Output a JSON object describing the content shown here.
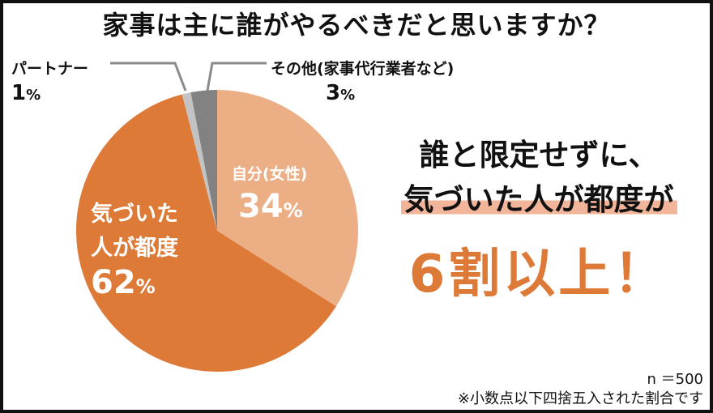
{
  "title": "家事は主に誰がやるべきだと思いますか？",
  "chart_data": {
    "type": "pie",
    "slices": [
      {
        "label": "自分(女性)",
        "value": 34,
        "color": "#ebae85"
      },
      {
        "label": "気づいた人が都度",
        "value": 62,
        "color": "#dd7a38"
      },
      {
        "label": "パートナー",
        "value": 1,
        "color": "#c3c3c3"
      },
      {
        "label": "その他(家事代行業者など)",
        "value": 3,
        "color": "#828282"
      }
    ],
    "labels": {
      "self_line1": "自分(女性)",
      "self_pct": "34",
      "aware_line1": "気づいた",
      "aware_line2": "人が都度",
      "aware_pct": "62",
      "partner_label": "パートナー",
      "partner_pct": "1",
      "other_label": "その他(家事代行業者など)",
      "other_pct": "3",
      "percent_sign": "%"
    }
  },
  "headline": {
    "line1": "誰と限定せずに、",
    "line2": "気づいた人が都度が",
    "line3": "6割以上！"
  },
  "footnote": {
    "n": "n ＝500",
    "note": "※小数点以下四捨五入された割合です"
  }
}
